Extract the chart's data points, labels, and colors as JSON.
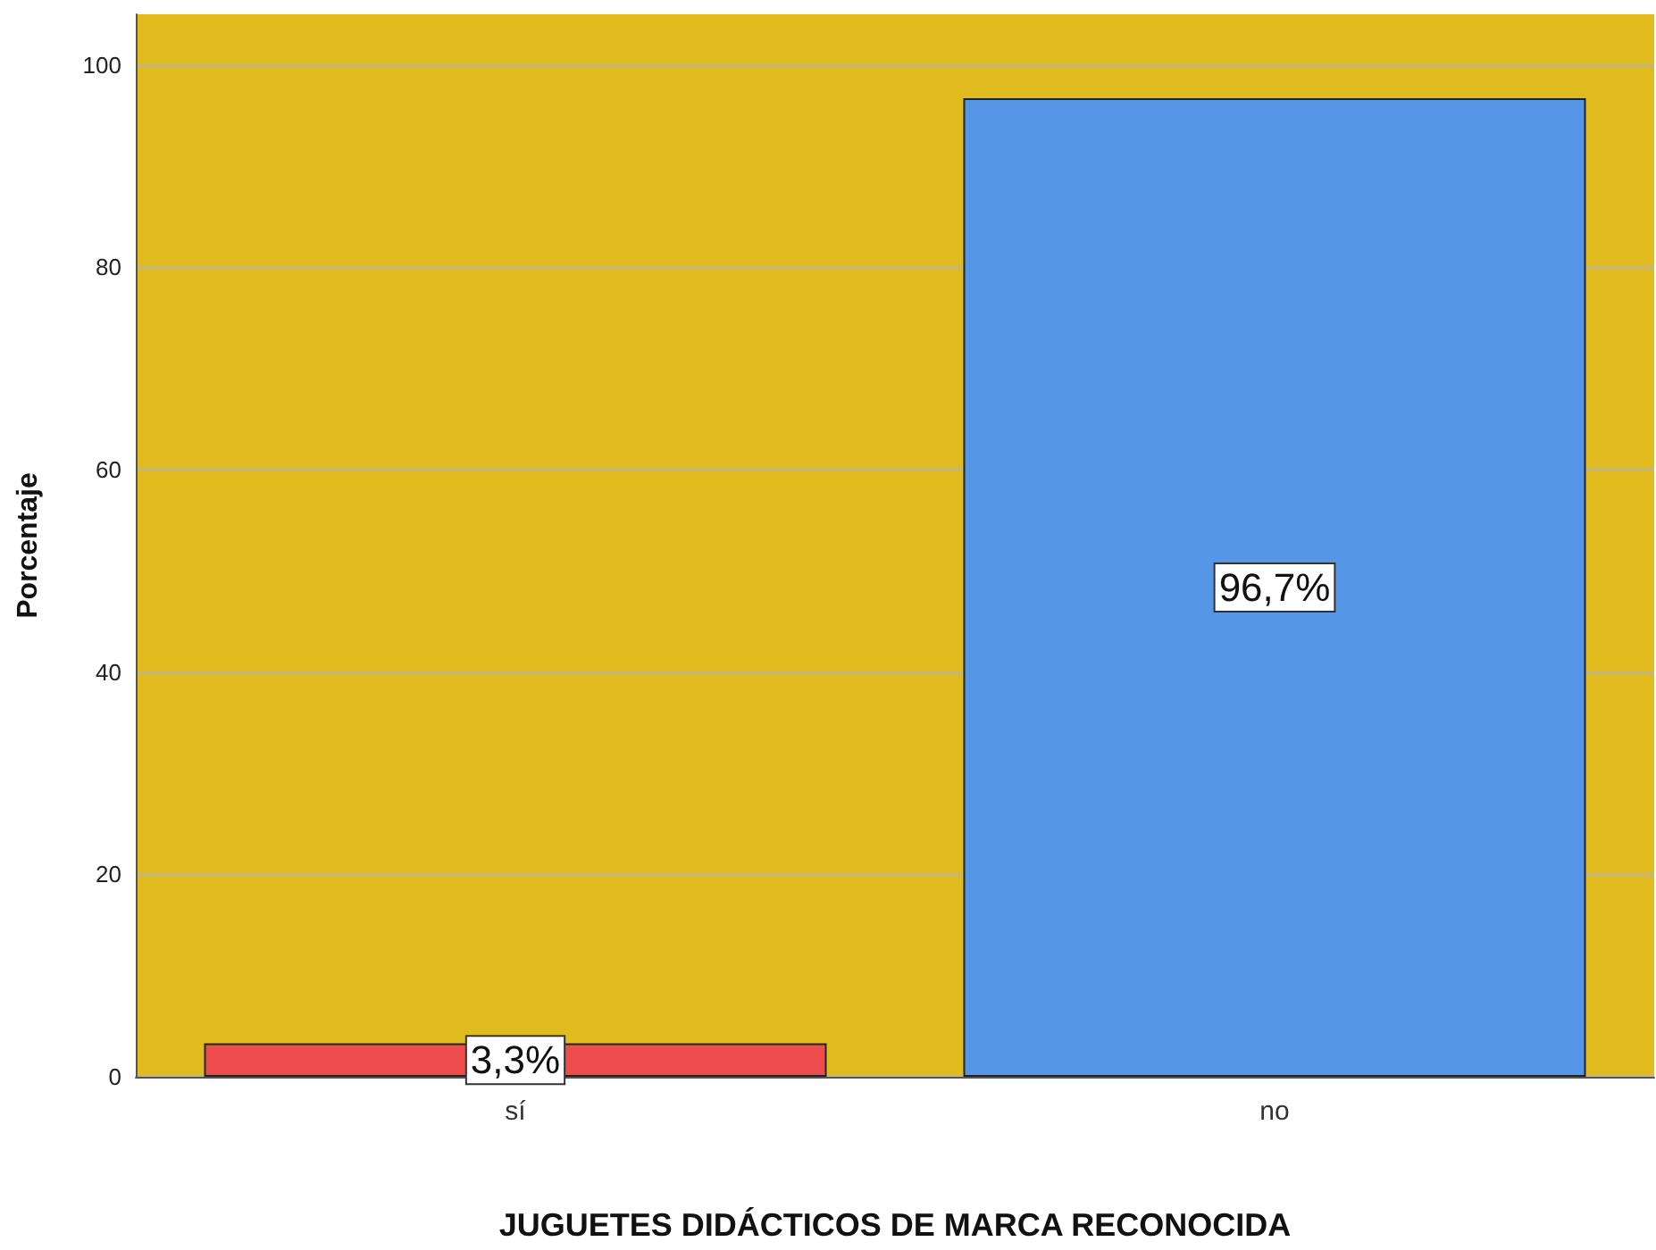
{
  "chart_data": {
    "type": "bar",
    "xlabel": "JUGUETES DIDÁCTICOS DE MARCA RECONOCIDA",
    "ylabel": "Porcentaje",
    "categories": [
      "sí",
      "no"
    ],
    "values": [
      3.3,
      96.7
    ],
    "colors": [
      "#ee4d4d",
      "#5597e6"
    ],
    "value_labels": [
      "3,3%",
      "96,7%"
    ],
    "ylim": [
      0,
      105
    ],
    "yticks": [
      0,
      20,
      40,
      60,
      80,
      100
    ],
    "grid": "y"
  }
}
